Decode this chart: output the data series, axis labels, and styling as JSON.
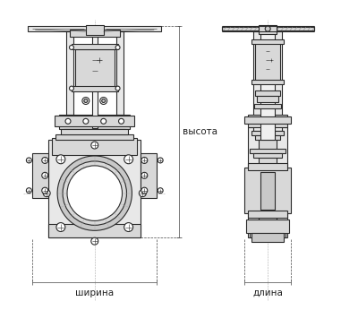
{
  "bg_color": "#ffffff",
  "line_color": "#2a2a2a",
  "dim_line_color": "#444444",
  "label_color": "#222222",
  "label_vysota": "высота",
  "label_shirina": "ширина",
  "label_dlina": "длина",
  "label_fontsize": 7.5,
  "fig_width": 4.0,
  "fig_height": 3.46
}
